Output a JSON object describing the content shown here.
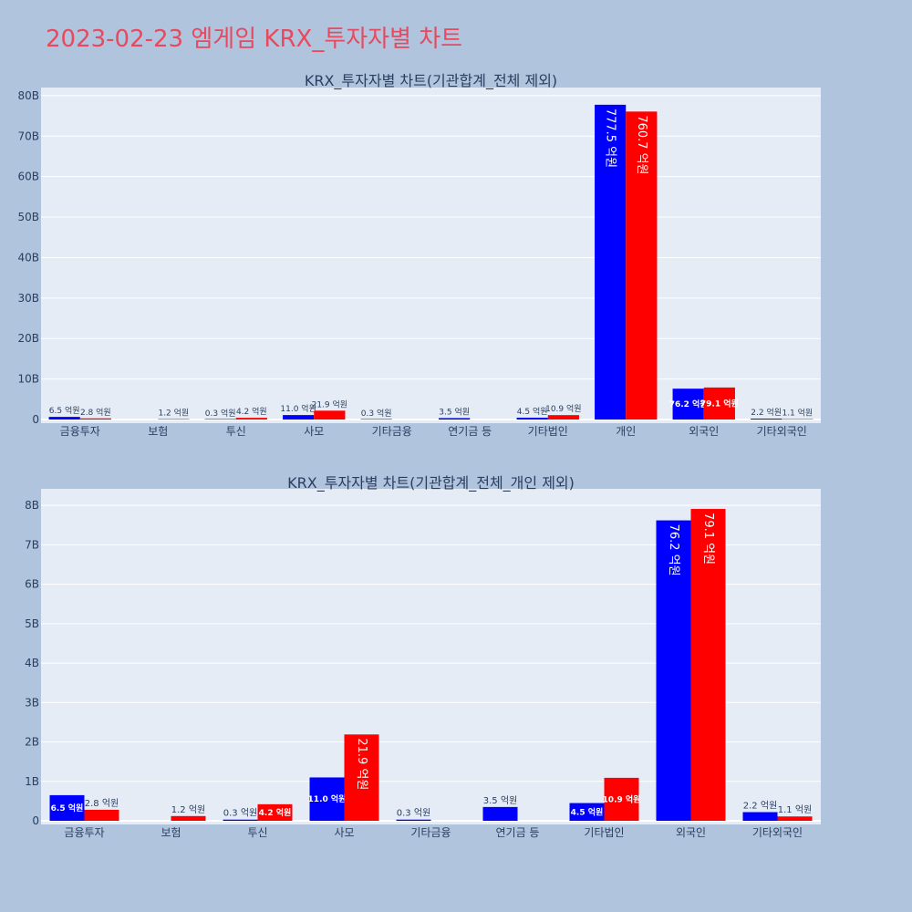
{
  "page_title": "2023-02-23 엠게임 KRX_투자자별 차트",
  "colors": {
    "background": "#b0c4de",
    "plot_bg": "#e5ecf6",
    "title": "#e8495f",
    "series_a": "#0000ff",
    "series_b": "#ff0000"
  },
  "chart_data": [
    {
      "type": "bar",
      "title": "KRX_투자자별 차트(기관합계_전체 제외)",
      "categories": [
        "금융투자",
        "보험",
        "투신",
        "사모",
        "기타금융",
        "연기금 등",
        "기타법인",
        "개인",
        "외국인",
        "기타외국인"
      ],
      "series": [
        {
          "color": "#0000ff",
          "values": [
            650000000,
            null,
            30000000,
            1100000000,
            30000000,
            350000000,
            450000000,
            77750000000,
            7620000000,
            220000000
          ],
          "labels": [
            "6.5 억원",
            "",
            "0.3 억원",
            "11.0 억원",
            "0.3 억원",
            "3.5 억원",
            "4.5 억원",
            "777.5 억원",
            "76.2 억원",
            "2.2 억원"
          ]
        },
        {
          "color": "#ff0000",
          "values": [
            280000000,
            120000000,
            420000000,
            2190000000,
            null,
            null,
            1090000000,
            76070000000,
            7910000000,
            110000000
          ],
          "labels": [
            "2.8 억원",
            "1.2 억원",
            "4.2 억원",
            "21.9 억원",
            "",
            "",
            "10.9 억원",
            "760.7 억원",
            "79.1 억원",
            "1.1 억원"
          ]
        }
      ],
      "ylim": [
        0,
        82000000000
      ],
      "yticks": [
        0,
        10000000000,
        20000000000,
        30000000000,
        40000000000,
        50000000000,
        60000000000,
        70000000000,
        80000000000
      ],
      "ytick_labels": [
        "0",
        "10B",
        "20B",
        "30B",
        "40B",
        "50B",
        "60B",
        "70B",
        "80B"
      ],
      "grid": true
    },
    {
      "type": "bar",
      "title": "KRX_투자자별 차트(기관합계_전체_개인 제외)",
      "categories": [
        "금융투자",
        "보험",
        "투신",
        "사모",
        "기타금융",
        "연기금 등",
        "기타법인",
        "외국인",
        "기타외국인"
      ],
      "series": [
        {
          "color": "#0000ff",
          "values": [
            650000000,
            null,
            30000000,
            1100000000,
            30000000,
            350000000,
            450000000,
            7620000000,
            220000000
          ],
          "labels": [
            "6.5 억원",
            "",
            "0.3 억원",
            "11.0 억원",
            "0.3 억원",
            "3.5 억원",
            "4.5 억원",
            "76.2 억원",
            "2.2 억원"
          ]
        },
        {
          "color": "#ff0000",
          "values": [
            280000000,
            120000000,
            420000000,
            2190000000,
            null,
            null,
            1090000000,
            7910000000,
            110000000
          ],
          "labels": [
            "2.8 억원",
            "1.2 억원",
            "4.2 억원",
            "21.9 억원",
            "",
            "",
            "10.9 억원",
            "79.1 억원",
            "1.1 억원"
          ]
        }
      ],
      "ylim": [
        0,
        8420000000
      ],
      "yticks": [
        0,
        1000000000,
        2000000000,
        3000000000,
        4000000000,
        5000000000,
        6000000000,
        7000000000,
        8000000000
      ],
      "ytick_labels": [
        "0",
        "1B",
        "2B",
        "3B",
        "4B",
        "5B",
        "6B",
        "7B",
        "8B"
      ],
      "grid": true
    }
  ]
}
